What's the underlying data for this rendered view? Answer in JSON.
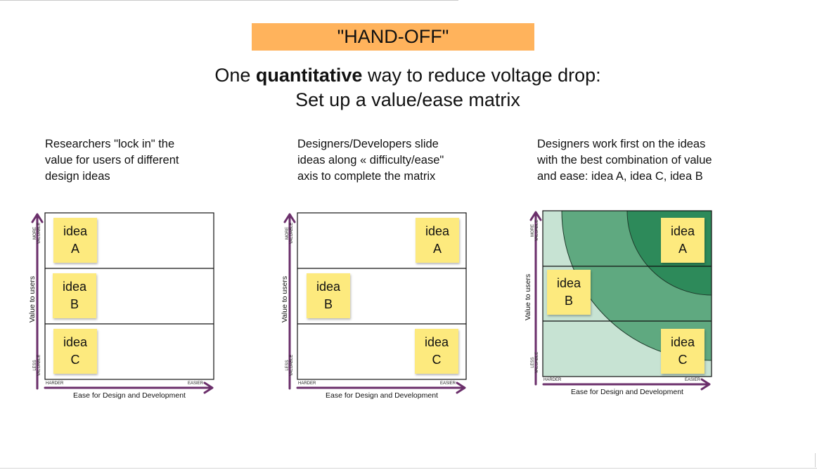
{
  "banner": "\"HAND-OFF\"",
  "headline": {
    "pre": "One ",
    "bold": "quantitative",
    "post": " way to reduce voltage drop:",
    "line2": "Set up a value/ease matrix"
  },
  "panels": [
    {
      "caption": [
        "Researchers \"lock in\" the",
        "value for users of different",
        "design ideas"
      ],
      "y_axis": "Value to users",
      "x_axis": "Ease for Design and Development",
      "y_high": [
        "MORE",
        "VALUABLE"
      ],
      "y_low": [
        "LESS",
        "VALUABLE"
      ],
      "x_low": "HARDER",
      "x_high": "EASIER",
      "notes": [
        {
          "line1": "idea",
          "line2": "A"
        },
        {
          "line1": "idea",
          "line2": "B"
        },
        {
          "line1": "idea",
          "line2": "C"
        }
      ]
    },
    {
      "caption": [
        "Designers/Developers slide",
        "ideas along « difficulty/ease\"",
        "axis to complete the matrix"
      ],
      "y_axis": "Value to users",
      "x_axis": "Ease for Design and Development",
      "y_high": [
        "MORE",
        "VALUABLE"
      ],
      "y_low": [
        "LESS",
        "VALUABLE"
      ],
      "x_low": "HARDER",
      "x_high": "EASIER",
      "notes": [
        {
          "line1": "idea",
          "line2": "A"
        },
        {
          "line1": "idea",
          "line2": "B"
        },
        {
          "line1": "idea",
          "line2": "C"
        }
      ]
    },
    {
      "caption": [
        "Designers work first on the ideas",
        "with the best combination of value",
        "and ease: idea A, idea C, idea B"
      ],
      "y_axis": "Value to users",
      "x_axis": "Ease for Design and Development",
      "y_high": [
        "MORE",
        "VALUABLE"
      ],
      "y_low": [
        "LESS",
        "VALUABLE"
      ],
      "x_low": "HARDER",
      "x_high": "EASIER",
      "notes": [
        {
          "line1": "idea",
          "line2": "A"
        },
        {
          "line1": "idea",
          "line2": "B"
        },
        {
          "line1": "idea",
          "line2": "C"
        }
      ]
    }
  ],
  "colors": {
    "banner": "#ffb35c",
    "sticky_note": "#fdea7e",
    "axis_arrow": "#6b2f6b",
    "zone_light": "#c7e3d3",
    "zone_mid": "#5fa980",
    "zone_dark": "#2d8a5a"
  }
}
